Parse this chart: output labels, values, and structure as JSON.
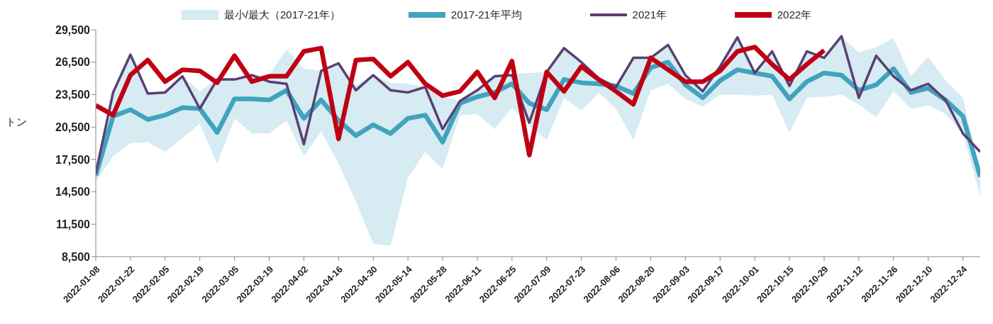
{
  "chart_data": {
    "type": "line",
    "ylabel": "トン",
    "legend": "top",
    "categories": [
      "2022-01-08",
      null,
      "2022-01-22",
      null,
      "2022-02-05",
      null,
      "2022-02-19",
      null,
      "2022-03-05",
      null,
      "2022-03-19",
      null,
      "2022-04-02",
      null,
      "2022-04-16",
      null,
      "2022-04-30",
      null,
      "2022-05-14",
      null,
      "2022-05-28",
      null,
      "2022-06-11",
      null,
      "2022-06-25",
      null,
      "2022-07-09",
      null,
      "2022-07-23",
      null,
      "2022-08-06",
      null,
      "2022-08-20",
      null,
      "2022-09-03",
      null,
      "2022-09-17",
      null,
      "2022-10-01",
      null,
      "2022-10-15",
      null,
      "2022-10-29",
      null,
      "2022-11-12",
      null,
      "2022-11-26",
      null,
      "2022-12-10",
      null,
      "2022-12-24",
      null
    ],
    "ylim": [
      8500,
      29500
    ],
    "yticks": [
      {
        "value": 8500,
        "label": "8,500"
      },
      {
        "value": 11500,
        "label": "11,500"
      },
      {
        "value": 14500,
        "label": "14,500"
      },
      {
        "value": 17500,
        "label": "17,500"
      },
      {
        "value": 20500,
        "label": "20,500"
      },
      {
        "value": 23500,
        "label": "23,500"
      },
      {
        "value": 26500,
        "label": "26,500"
      },
      {
        "value": 29500,
        "label": "29,500"
      }
    ],
    "series": [
      {
        "type": "area",
        "name": "最小/最大（2017-21年）",
        "color": "#d6ebf2",
        "lower": [
          15400,
          17800,
          19000,
          19100,
          18200,
          19500,
          20800,
          17100,
          21300,
          19900,
          19900,
          21100,
          17800,
          20100,
          17100,
          13600,
          9700,
          9500,
          15800,
          18200,
          16600,
          21600,
          21700,
          20300,
          22300,
          20600,
          19300,
          23200,
          22000,
          23700,
          22200,
          19300,
          23900,
          24500,
          23100,
          22400,
          23500,
          23500,
          23400,
          23500,
          20000,
          23200,
          23300,
          23500,
          22600,
          21400,
          23800,
          22200,
          22500,
          21700,
          19900,
          14100
        ],
        "values": [
          null,
          null,
          null,
          null,
          null,
          null,
          null,
          null,
          null,
          null,
          null,
          null,
          null,
          null,
          null,
          null,
          null,
          null,
          null,
          null,
          null,
          null,
          null,
          null,
          null,
          null,
          null,
          null,
          null,
          null,
          null,
          null,
          null,
          null,
          null,
          null,
          null,
          null,
          null,
          null,
          null,
          null,
          null,
          null,
          null,
          null,
          null,
          null,
          null,
          null,
          null,
          null
        ],
        "upper": [
          16200,
          23700,
          27200,
          23600,
          23700,
          25200,
          23800,
          24900,
          24900,
          25300,
          25300,
          27700,
          25900,
          25700,
          26400,
          24400,
          25300,
          24600,
          24500,
          24200,
          23300,
          22900,
          23900,
          25200,
          25400,
          25500,
          25600,
          27800,
          26500,
          25000,
          24400,
          26900,
          26900,
          28100,
          25300,
          23800,
          26100,
          28800,
          25500,
          27500,
          24300,
          27500,
          26900,
          28900,
          27400,
          27900,
          28700,
          25200,
          27000,
          24800,
          23200,
          16100
        ]
      },
      {
        "type": "line",
        "name": "2017-21年平均",
        "color": "#41a3bd",
        "values": [
          16000,
          21500,
          22100,
          21200,
          21600,
          22300,
          22200,
          20000,
          23100,
          23100,
          23000,
          23900,
          21300,
          23000,
          21100,
          19700,
          20700,
          19900,
          21300,
          21600,
          19100,
          22700,
          23300,
          23700,
          24500,
          22700,
          22100,
          24900,
          24600,
          24500,
          24300,
          23600,
          26000,
          26500,
          24400,
          23200,
          24800,
          25800,
          25500,
          25200,
          23100,
          24700,
          25500,
          25300,
          23900,
          24400,
          25900,
          23700,
          24100,
          23000,
          21500,
          15900
        ]
      },
      {
        "type": "line",
        "name": "2021年",
        "color": "#5b3f72",
        "values": [
          16200,
          23700,
          27200,
          23600,
          23700,
          25200,
          22200,
          24900,
          24900,
          25300,
          24700,
          24500,
          18900,
          25700,
          26400,
          23900,
          25300,
          23900,
          23700,
          24200,
          20300,
          22900,
          23900,
          25200,
          25300,
          20900,
          25600,
          27800,
          26500,
          25000,
          24200,
          26900,
          26900,
          28100,
          25300,
          23800,
          26100,
          28800,
          25500,
          27500,
          24300,
          27500,
          26900,
          28900,
          23200,
          27100,
          25200,
          23900,
          24500,
          23000,
          19900,
          18200
        ]
      },
      {
        "type": "line",
        "name": "2022年",
        "color": "#c00012",
        "values": [
          22500,
          21600,
          25300,
          26700,
          24700,
          25800,
          25700,
          24600,
          27100,
          24700,
          25200,
          25200,
          27500,
          27800,
          19400,
          26700,
          26800,
          25200,
          26500,
          24500,
          23400,
          23800,
          25600,
          23200,
          26600,
          17900,
          25600,
          23800,
          26100,
          24900,
          23800,
          22600,
          26900,
          25800,
          24700,
          24700,
          25700,
          27500,
          27900,
          26300,
          24900,
          26300,
          27600,
          null,
          null,
          null,
          null,
          null,
          null,
          null,
          null,
          null
        ]
      }
    ]
  }
}
